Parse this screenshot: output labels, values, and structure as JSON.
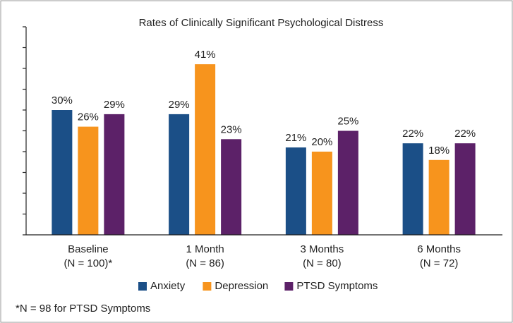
{
  "chart_data": {
    "type": "bar",
    "title": "Rates of Clinically Significant Psychological Distress",
    "categories": [
      "Baseline",
      "1 Month",
      "3 Months",
      "6 Months"
    ],
    "sample_sizes": [
      "(N = 100)*",
      "(N = 86)",
      "(N = 80)",
      "(N = 72)"
    ],
    "series": [
      {
        "name": "Anxiety",
        "color": "#1b4f87",
        "values": [
          30,
          29,
          21,
          22
        ],
        "value_labels": [
          "30%",
          "29%",
          "21%",
          "22%"
        ]
      },
      {
        "name": "Depression",
        "color": "#f7941d",
        "values": [
          26,
          41,
          20,
          18
        ],
        "value_labels": [
          "26%",
          "41%",
          "20%",
          "18%"
        ]
      },
      {
        "name": "PTSD Symptoms",
        "color": "#5c2168",
        "values": [
          29,
          23,
          25,
          22
        ],
        "value_labels": [
          "29%",
          "23%",
          "25%",
          "22%"
        ]
      }
    ],
    "ylim": [
      0,
      50
    ],
    "yticks": [
      0,
      5,
      10,
      15,
      20,
      25,
      30,
      35,
      40,
      45,
      50
    ],
    "legend": "bottom",
    "footnote": "*N = 98 for PTSD Symptoms"
  }
}
